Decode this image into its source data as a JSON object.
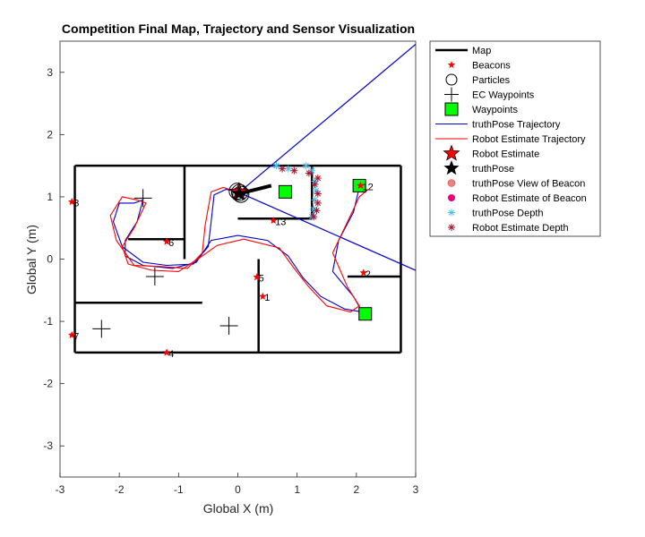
{
  "chart_data": {
    "type": "line",
    "title": "Competition Final Map, Trajectory and Sensor Visualization",
    "xlabel": "Global X (m)",
    "ylabel": "Global Y (m)",
    "xlim": [
      -3,
      3
    ],
    "ylim": [
      -3.5,
      3.5
    ],
    "xticks": [
      -3,
      -2,
      -1,
      0,
      1,
      2,
      3
    ],
    "yticks": [
      -3,
      -2,
      -1,
      0,
      1,
      2,
      3
    ],
    "grid": false,
    "legend_position": "outside-top-right",
    "colors": {
      "map": "#000000",
      "beacon": "#ff0000",
      "truth_traj": "#0000cc",
      "est_traj": "#ff0000",
      "waypoint_fill": "#00ff00",
      "truth_depth": "#4dbeee",
      "est_depth": "#a2142f",
      "truth_view_beacon": "#f08080",
      "est_view_beacon": "#e6007a",
      "depth_ray": "#0000cc"
    },
    "legend": [
      {
        "label": "Map",
        "marker": "line-black-thick"
      },
      {
        "label": "Beacons",
        "marker": "star-red-small"
      },
      {
        "label": "Particles",
        "marker": "circle-open"
      },
      {
        "label": "EC Waypoints",
        "marker": "plus-black"
      },
      {
        "label": "Waypoints",
        "marker": "square-green"
      },
      {
        "label": "truthPose Trajectory",
        "marker": "line-blue"
      },
      {
        "label": "Robot Estimate Trajectory",
        "marker": "line-red"
      },
      {
        "label": "Robot Estimate",
        "marker": "star-red-big"
      },
      {
        "label": "truthPose",
        "marker": "star-black-big"
      },
      {
        "label": "truthPose View of Beacon",
        "marker": "dot-salmon"
      },
      {
        "label": "Robot Estimate of Beacon",
        "marker": "dot-magenta"
      },
      {
        "label": "truthPose Depth",
        "marker": "asterisk-cyan"
      },
      {
        "label": "Robot Estimate Depth",
        "marker": "asterisk-darkred"
      }
    ],
    "map_walls": [
      [
        [
          -2.75,
          1.5
        ],
        [
          2.75,
          1.5
        ]
      ],
      [
        [
          -2.75,
          -1.5
        ],
        [
          2.75,
          -1.5
        ]
      ],
      [
        [
          -2.75,
          -1.5
        ],
        [
          -2.75,
          1.5
        ]
      ],
      [
        [
          2.75,
          -1.5
        ],
        [
          2.75,
          1.5
        ]
      ],
      [
        [
          -0.9,
          1.5
        ],
        [
          -0.9,
          0.0
        ]
      ],
      [
        [
          -1.85,
          0.32
        ],
        [
          -0.9,
          0.32
        ]
      ],
      [
        [
          -2.75,
          -0.7
        ],
        [
          -0.6,
          -0.7
        ]
      ],
      [
        [
          0.0,
          0.65
        ],
        [
          1.25,
          0.65
        ]
      ],
      [
        [
          1.25,
          0.65
        ],
        [
          1.25,
          1.5
        ]
      ],
      [
        [
          0.35,
          -1.5
        ],
        [
          0.35,
          0.0
        ]
      ],
      [
        [
          1.85,
          -0.28
        ],
        [
          2.75,
          -0.28
        ]
      ]
    ],
    "beacons": [
      {
        "id": "1",
        "x": 0.42,
        "y": -0.6
      },
      {
        "id": "2",
        "x": 2.12,
        "y": -0.22
      },
      {
        "id": "3",
        "x": -2.8,
        "y": 0.92
      },
      {
        "id": "4",
        "x": -1.2,
        "y": -1.5
      },
      {
        "id": "5",
        "x": 0.32,
        "y": -0.29
      },
      {
        "id": "6",
        "x": -1.2,
        "y": 0.28
      },
      {
        "id": "7",
        "x": -2.8,
        "y": -1.22
      },
      {
        "id": "12",
        "x": 2.07,
        "y": 1.18
      },
      {
        "id": "13",
        "x": 0.6,
        "y": 0.62
      }
    ],
    "ec_waypoints": [
      {
        "x": -1.6,
        "y": 0.98
      },
      {
        "x": -1.4,
        "y": -0.28
      },
      {
        "x": -2.3,
        "y": -1.12
      },
      {
        "x": -0.15,
        "y": -1.07
      }
    ],
    "waypoints": [
      {
        "x": 0.8,
        "y": 1.08
      },
      {
        "x": 2.05,
        "y": 1.18
      },
      {
        "x": 2.15,
        "y": -0.88
      }
    ],
    "truth_trajectory": [
      [
        0.05,
        1.07
      ],
      [
        -0.2,
        1.12
      ],
      [
        -0.4,
        1.03
      ],
      [
        -0.45,
        0.6
      ],
      [
        -0.5,
        0.2
      ],
      [
        -0.75,
        -0.08
      ],
      [
        -1.2,
        -0.1
      ],
      [
        -1.6,
        -0.05
      ],
      [
        -1.95,
        0.2
      ],
      [
        -2.1,
        0.6
      ],
      [
        -2.0,
        0.9
      ],
      [
        -1.75,
        0.9
      ],
      [
        -1.6,
        0.95
      ],
      [
        -1.7,
        0.6
      ],
      [
        -1.9,
        0.3
      ],
      [
        -1.9,
        0.05
      ],
      [
        -1.6,
        -0.1
      ],
      [
        -1.1,
        -0.15
      ],
      [
        -0.7,
        -0.05
      ],
      [
        -0.45,
        0.3
      ],
      [
        0.0,
        0.38
      ],
      [
        0.5,
        0.3
      ],
      [
        0.85,
        0.05
      ],
      [
        1.1,
        -0.3
      ],
      [
        1.4,
        -0.6
      ],
      [
        1.8,
        -0.8
      ],
      [
        2.1,
        -0.85
      ],
      [
        1.95,
        -0.6
      ],
      [
        1.6,
        -0.2
      ],
      [
        1.7,
        0.3
      ],
      [
        1.95,
        0.75
      ],
      [
        2.05,
        1.15
      ]
    ],
    "est_trajectory": [
      [
        0.05,
        1.07
      ],
      [
        -0.25,
        1.15
      ],
      [
        -0.45,
        1.08
      ],
      [
        -0.55,
        0.55
      ],
      [
        -0.6,
        0.1
      ],
      [
        -0.85,
        -0.15
      ],
      [
        -1.3,
        -0.12
      ],
      [
        -1.75,
        -0.1
      ],
      [
        -2.05,
        0.3
      ],
      [
        -2.15,
        0.7
      ],
      [
        -1.95,
        1.0
      ],
      [
        -1.7,
        0.95
      ],
      [
        -1.55,
        0.9
      ],
      [
        -1.75,
        0.5
      ],
      [
        -1.95,
        0.2
      ],
      [
        -1.85,
        -0.08
      ],
      [
        -1.45,
        -0.18
      ],
      [
        -1.0,
        -0.2
      ],
      [
        -0.6,
        0.05
      ],
      [
        -0.35,
        0.22
      ],
      [
        0.1,
        0.32
      ],
      [
        0.7,
        0.18
      ],
      [
        0.95,
        -0.15
      ],
      [
        1.2,
        -0.45
      ],
      [
        1.5,
        -0.75
      ],
      [
        1.9,
        -0.85
      ],
      [
        2.05,
        -0.75
      ],
      [
        1.85,
        -0.45
      ],
      [
        1.6,
        0.1
      ],
      [
        1.85,
        0.6
      ],
      [
        2.05,
        1.0
      ],
      [
        2.2,
        1.12
      ]
    ],
    "robot_estimate": {
      "x": 0.02,
      "y": 1.08
    },
    "truth_pose": {
      "x": 0.02,
      "y": 1.05
    },
    "depth_rays": [
      [
        [
          0.02,
          1.07
        ],
        [
          3.0,
          3.45
        ]
      ],
      [
        [
          0.02,
          1.07
        ],
        [
          3.0,
          -0.18
        ]
      ]
    ],
    "truth_depth_points": [
      [
        0.65,
        1.5
      ],
      [
        0.85,
        1.45
      ],
      [
        1.15,
        1.5
      ],
      [
        1.25,
        1.42
      ],
      [
        1.3,
        1.25
      ],
      [
        1.32,
        1.1
      ],
      [
        1.3,
        0.95
      ],
      [
        1.28,
        0.8
      ],
      [
        1.25,
        0.68
      ]
    ],
    "est_depth_points": [
      [
        0.75,
        1.45
      ],
      [
        0.95,
        1.42
      ],
      [
        1.2,
        1.38
      ],
      [
        1.3,
        1.2
      ],
      [
        1.35,
        1.05
      ],
      [
        1.35,
        0.9
      ],
      [
        1.33,
        0.78
      ],
      [
        1.28,
        0.68
      ],
      [
        1.35,
        1.3
      ]
    ],
    "particles": [
      {
        "x": 0.03,
        "y": 1.07
      },
      {
        "x": 0.05,
        "y": 1.04
      },
      {
        "x": -0.01,
        "y": 1.09
      }
    ]
  }
}
